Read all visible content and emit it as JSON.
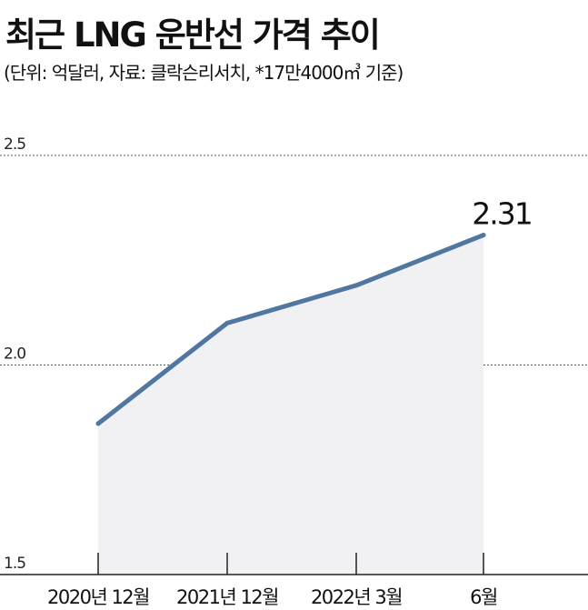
{
  "header": {
    "title": "최근 LNG 운반선 가격 추이",
    "subtitle": "(단위: 억달러, 자료: 클락슨리서치, *17만4000㎥ 기준)"
  },
  "chart_data": {
    "type": "area",
    "title": "최근 LNG 운반선 가격 추이",
    "subtitle": "(단위: 억달러, 자료: 클락슨리서치, *17만4000㎥ 기준)",
    "categories": [
      "2020년 12월",
      "2021년 12월",
      "2022년 3월",
      "6월"
    ],
    "values": [
      1.86,
      2.1,
      2.19,
      2.31
    ],
    "ylim": [
      1.5,
      2.5
    ],
    "yticks": [
      "2.5",
      "2.0",
      "1.5"
    ],
    "grid": true,
    "annotation": "2.31",
    "line_color": "#4f77a0",
    "fill_color": "#f1f1f3",
    "grid_color": "#555555"
  }
}
